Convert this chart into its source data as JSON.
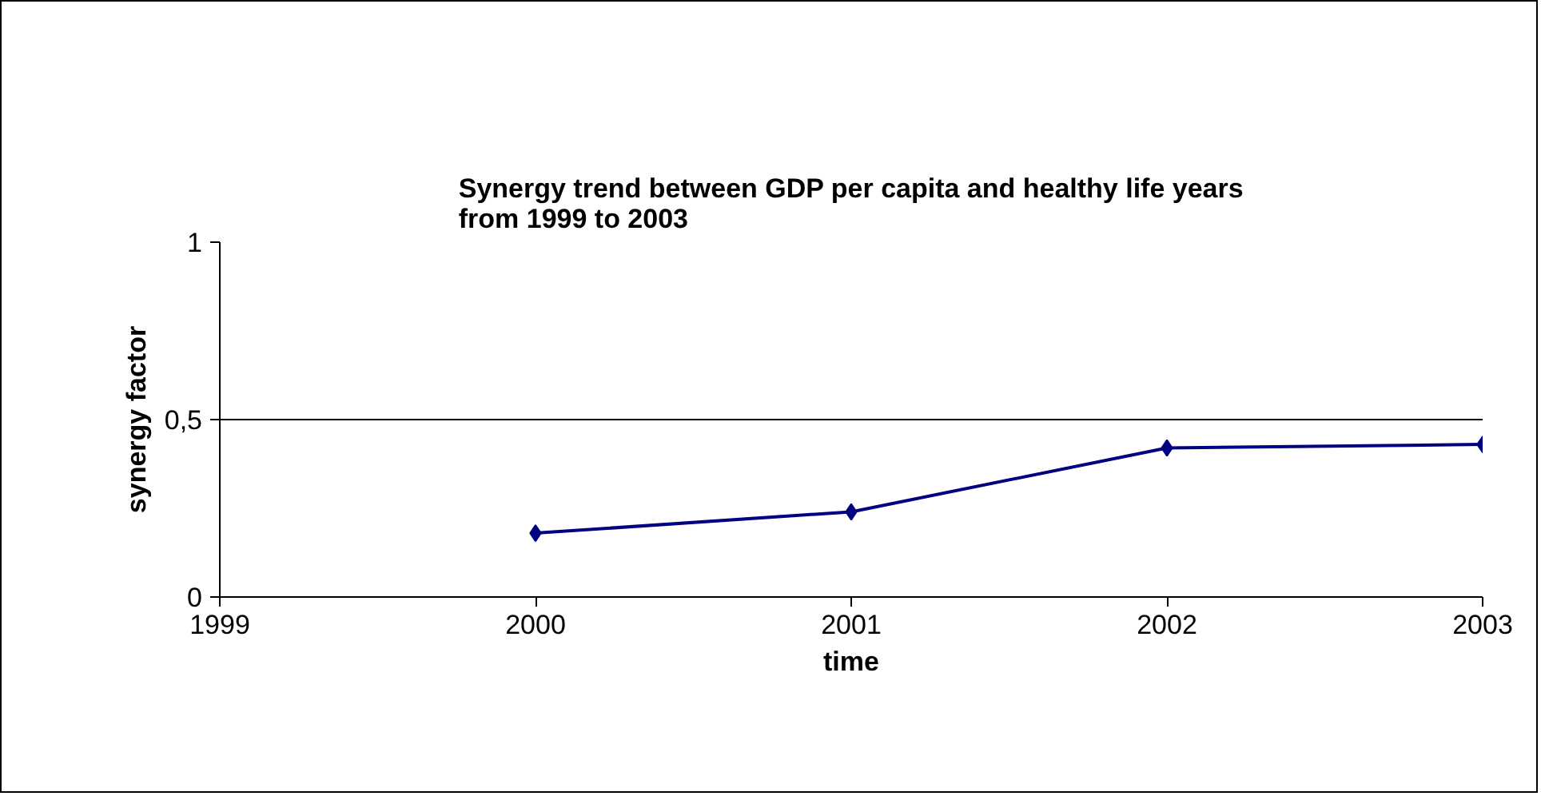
{
  "chart_data": {
    "type": "line",
    "title": "Synergy trend between GDP per capita and healthy life years from 1999 to 2003",
    "xlabel": "time",
    "ylabel": "synergy factor",
    "x": [
      2000,
      2001,
      2002,
      2003
    ],
    "series": [
      {
        "color": "#000080",
        "values": [
          0.18,
          0.24,
          0.42,
          0.43
        ]
      }
    ],
    "xlim": [
      1999,
      2003
    ],
    "xticks": [
      1999,
      2000,
      2001,
      2002,
      2003
    ],
    "ylim": [
      0,
      1
    ],
    "yticks": [
      0,
      {
        "value": 0.5,
        "label": "0,5"
      },
      1
    ],
    "grid": "y",
    "marker": "diamond",
    "line_style": "solid"
  }
}
